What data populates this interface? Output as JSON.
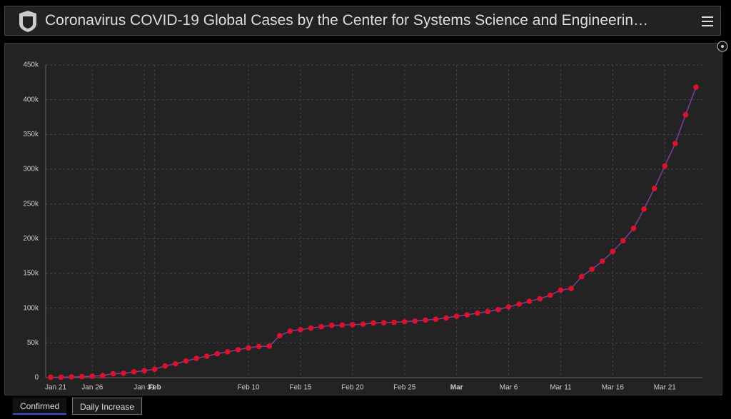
{
  "header": {
    "title": "Coronavirus COVID-19 Global Cases by the Center for Systems Science and Engineerin…"
  },
  "tabs": [
    "Confirmed",
    "Daily Increase"
  ],
  "chart_data": {
    "type": "line",
    "color": "#e0102a",
    "line_color": "#7b3fa0",
    "x": [
      "Jan 22",
      "Jan 23",
      "Jan 24",
      "Jan 25",
      "Jan 26",
      "Jan 27",
      "Jan 28",
      "Jan 29",
      "Jan 30",
      "Jan 31",
      "Feb 1",
      "Feb 2",
      "Feb 3",
      "Feb 4",
      "Feb 5",
      "Feb 6",
      "Feb 7",
      "Feb 8",
      "Feb 9",
      "Feb 10",
      "Feb 11",
      "Feb 12",
      "Feb 13",
      "Feb 14",
      "Feb 15",
      "Feb 16",
      "Feb 17",
      "Feb 18",
      "Feb 19",
      "Feb 20",
      "Feb 21",
      "Feb 22",
      "Feb 23",
      "Feb 24",
      "Feb 25",
      "Feb 26",
      "Feb 27",
      "Feb 28",
      "Feb 29",
      "Mar 1",
      "Mar 2",
      "Mar 3",
      "Mar 4",
      "Mar 5",
      "Mar 6",
      "Mar 7",
      "Mar 8",
      "Mar 9",
      "Mar 10",
      "Mar 11",
      "Mar 12",
      "Mar 13",
      "Mar 14",
      "Mar 15",
      "Mar 16",
      "Mar 17",
      "Mar 18",
      "Mar 19",
      "Mar 20",
      "Mar 21",
      "Mar 22",
      "Mar 23",
      "Mar 24"
    ],
    "values": [
      555,
      654,
      941,
      1434,
      2118,
      2927,
      5578,
      6166,
      8234,
      9927,
      12038,
      16787,
      19881,
      23892,
      27635,
      30794,
      34391,
      37120,
      40150,
      42762,
      44802,
      45221,
      60368,
      66885,
      69030,
      71224,
      73258,
      75136,
      75639,
      76197,
      76819,
      78572,
      78958,
      79561,
      80406,
      81388,
      82746,
      84112,
      86011,
      88369,
      90306,
      92840,
      95120,
      97886,
      101801,
      105847,
      109821,
      113590,
      118620,
      125875,
      128352,
      145205,
      156101,
      167454,
      181574,
      197102,
      214821,
      242570,
      272208,
      304507,
      336953,
      378231,
      418041
    ],
    "ylim": [
      0,
      450000
    ],
    "yticks": [
      0,
      {
        "value": 50000,
        "label": "50k"
      },
      {
        "value": 100000,
        "label": "100k"
      },
      {
        "value": 150000,
        "label": "150k"
      },
      {
        "value": 200000,
        "label": "200k"
      },
      {
        "value": 250000,
        "label": "250k"
      },
      {
        "value": 300000,
        "label": "300k"
      },
      {
        "value": 350000,
        "label": "350k"
      },
      {
        "value": 400000,
        "label": "400k"
      },
      {
        "value": 450000,
        "label": "450k"
      }
    ],
    "xticks": [
      "Jan 21",
      "Jan 26",
      "Jan 31",
      "Feb",
      "Feb 10",
      "Feb 15",
      "Feb 20",
      "Feb 25",
      "Mar",
      "Mar 6",
      "Mar 11",
      "Mar 16",
      "Mar 21"
    ],
    "grid": true
  }
}
